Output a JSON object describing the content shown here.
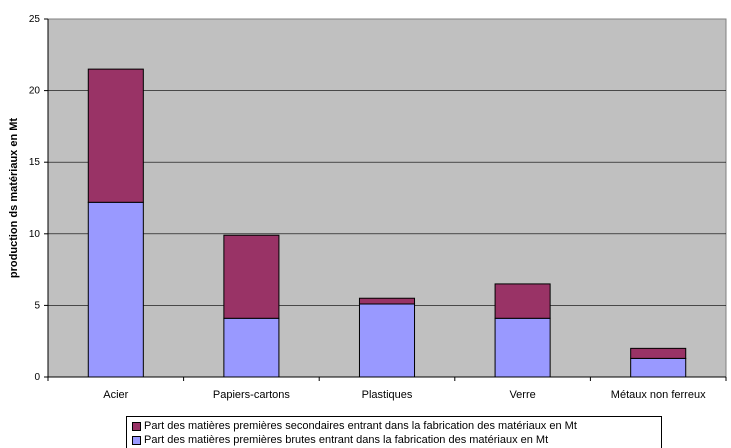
{
  "chart_data": {
    "type": "bar",
    "stacked": true,
    "categories": [
      "Acier",
      "Papiers-cartons",
      "Plastiques",
      "Verre",
      "Métaux non ferreux"
    ],
    "series": [
      {
        "name": "Part des matières premières brutes entrant dans la fabrication des matériaux en Mt",
        "color": "#9999ff",
        "values": [
          12.2,
          4.1,
          5.1,
          4.1,
          1.3
        ]
      },
      {
        "name": "Part des matières premières secondaires entrant dans la fabrication des matériaux en Mt",
        "color": "#993366",
        "values": [
          9.3,
          5.8,
          0.4,
          2.4,
          0.7
        ]
      }
    ],
    "title": "",
    "xlabel": "",
    "ylabel": "production ds matériaux en Mt",
    "ylim": [
      0,
      25
    ],
    "yticks": [
      0,
      5,
      10,
      15,
      20,
      25
    ],
    "plot_background": "#c0c0c0",
    "grid": true,
    "legend_position": "bottom",
    "legend_order": [
      1,
      0
    ]
  }
}
